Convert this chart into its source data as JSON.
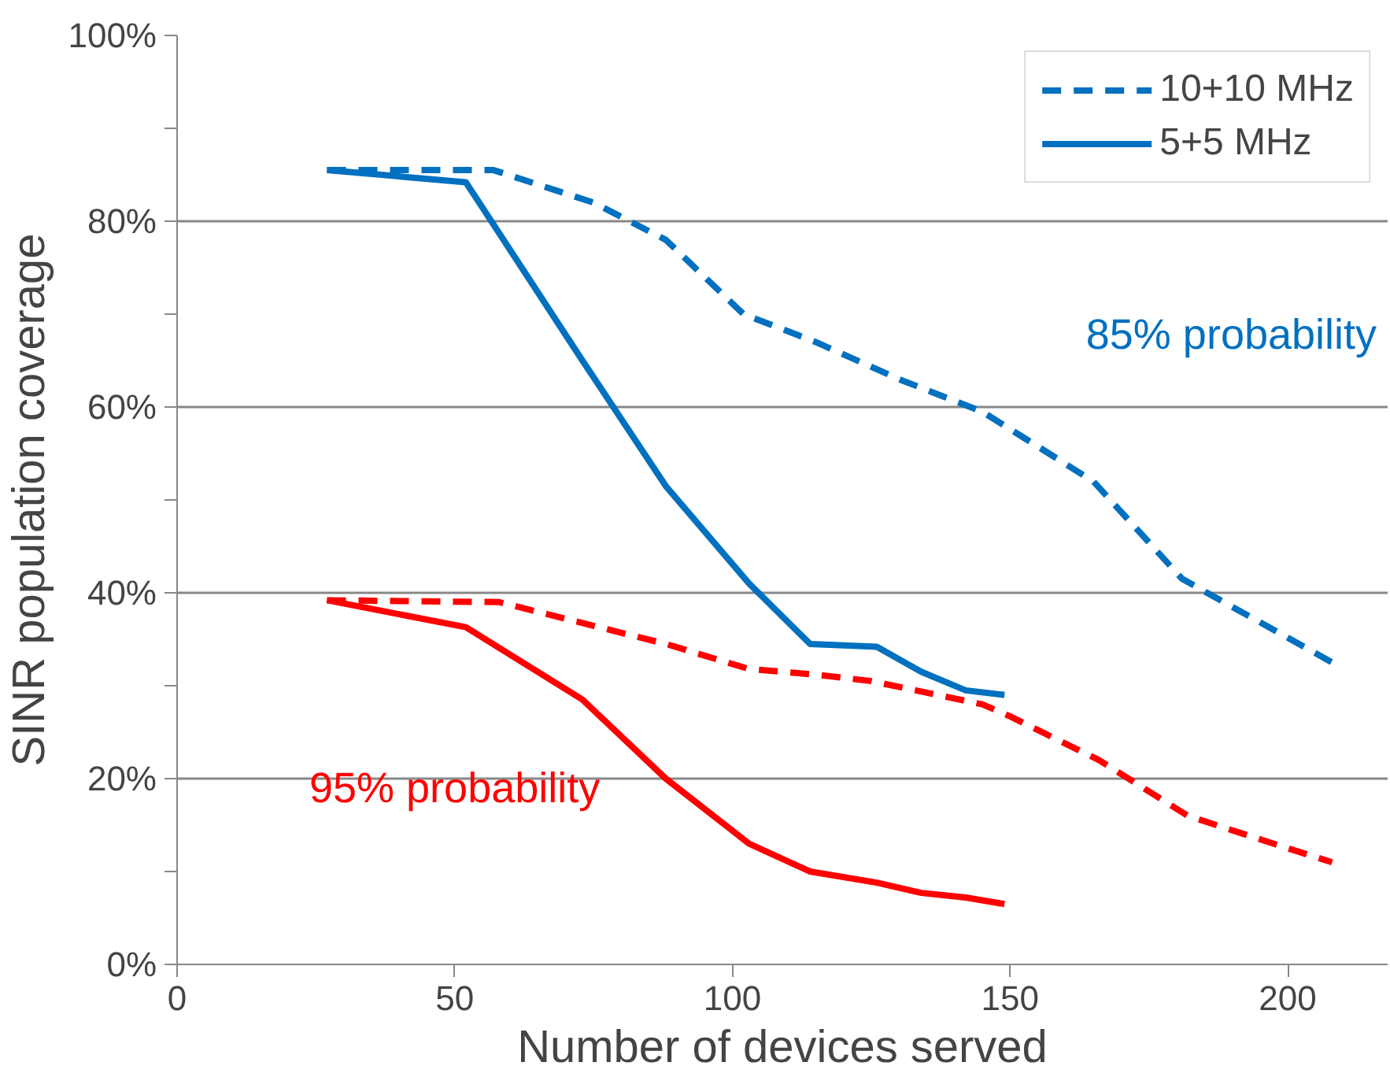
{
  "chart_data": {
    "type": "line",
    "xlabel": "Number of devices served",
    "ylabel": "SINR population coverage",
    "xlim": [
      0,
      218
    ],
    "xticks": [
      0,
      50,
      100,
      150,
      200
    ],
    "ylim": [
      0,
      100
    ],
    "yticks": [
      {
        "value": 0,
        "label": "0%"
      },
      {
        "value": 10,
        "label": null
      },
      {
        "value": 20,
        "label": "20%"
      },
      {
        "value": 30,
        "label": null
      },
      {
        "value": 40,
        "label": "40%"
      },
      {
        "value": 50,
        "label": null
      },
      {
        "value": 60,
        "label": "60%"
      },
      {
        "value": 70,
        "label": null
      },
      {
        "value": 80,
        "label": "80%"
      },
      {
        "value": 90,
        "label": null
      },
      {
        "value": 100,
        "label": "100%"
      }
    ],
    "grid": "y",
    "legend": "top right",
    "series": [
      {
        "name": "10+10 MHz",
        "color": "#0070c0",
        "line_style": "dashed",
        "x": [
          27,
          57,
          75,
          88,
          102,
          115,
          130,
          145,
          165,
          181,
          208
        ],
        "values": [
          85.5,
          85.5,
          82,
          78,
          70,
          67,
          63,
          59.5,
          52,
          41.5,
          32.5
        ]
      },
      {
        "name": "5+5 MHz",
        "color": "#0070c0",
        "line_style": "solid",
        "x": [
          27,
          52,
          73,
          88,
          103,
          114,
          126,
          134,
          142,
          149
        ],
        "values": [
          85.5,
          84.2,
          65,
          51.5,
          41,
          34.5,
          34.2,
          31.5,
          29.5,
          29
        ]
      },
      {
        "color": "#ff0000",
        "line_style": "dashed",
        "x": [
          27,
          58,
          88,
          103,
          115,
          125,
          145,
          150,
          166,
          182,
          200,
          208
        ],
        "values": [
          39.2,
          39,
          34.5,
          31.8,
          31.2,
          30.5,
          28,
          26.7,
          22,
          16,
          12.5,
          11
        ]
      },
      {
        "color": "#ff0000",
        "line_style": "solid",
        "x": [
          27,
          52,
          73,
          88,
          103,
          114,
          126,
          134,
          142,
          149
        ],
        "values": [
          39.2,
          36.3,
          28.5,
          20,
          13,
          10,
          8.8,
          7.7,
          7.2,
          6.5
        ]
      }
    ],
    "annotations": [
      "85% probability",
      "95% probability"
    ]
  }
}
